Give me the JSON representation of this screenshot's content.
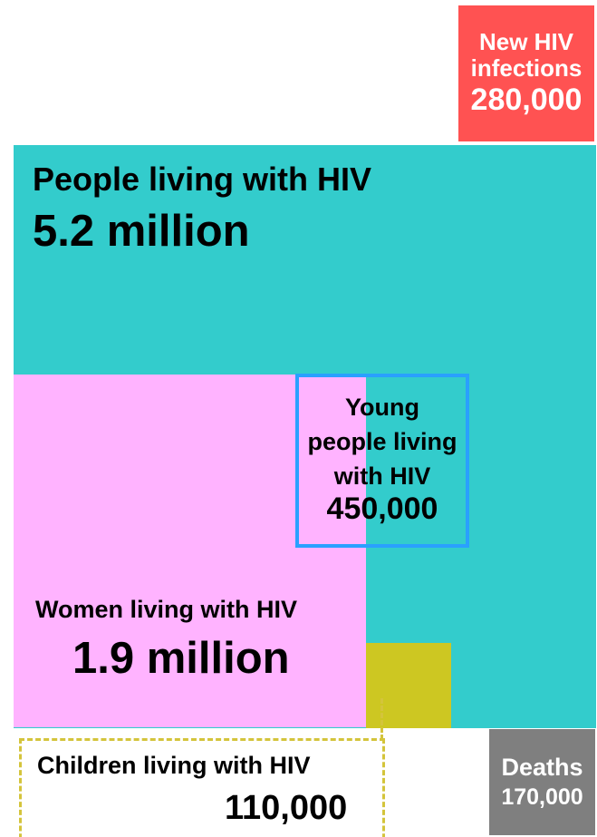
{
  "new_infections": {
    "label_line1": "New HIV",
    "label_line2": "infections",
    "value": "280,000",
    "color": "#ff5252"
  },
  "people_living": {
    "label": "People living with HIV",
    "value": "5.2 million",
    "color": "#33cccc"
  },
  "young_people": {
    "label": "Young people living with HIV",
    "value": "450,000",
    "color": "#2aa0ff"
  },
  "women": {
    "label": "Women living with HIV",
    "value": "1.9 million",
    "color": "#ffb3ff"
  },
  "children": {
    "label": "Children living with HIV",
    "value": "110,000",
    "color": "#cdc722"
  },
  "deaths": {
    "label": "Deaths",
    "value": "170,000",
    "color": "#7f7f7f"
  }
}
